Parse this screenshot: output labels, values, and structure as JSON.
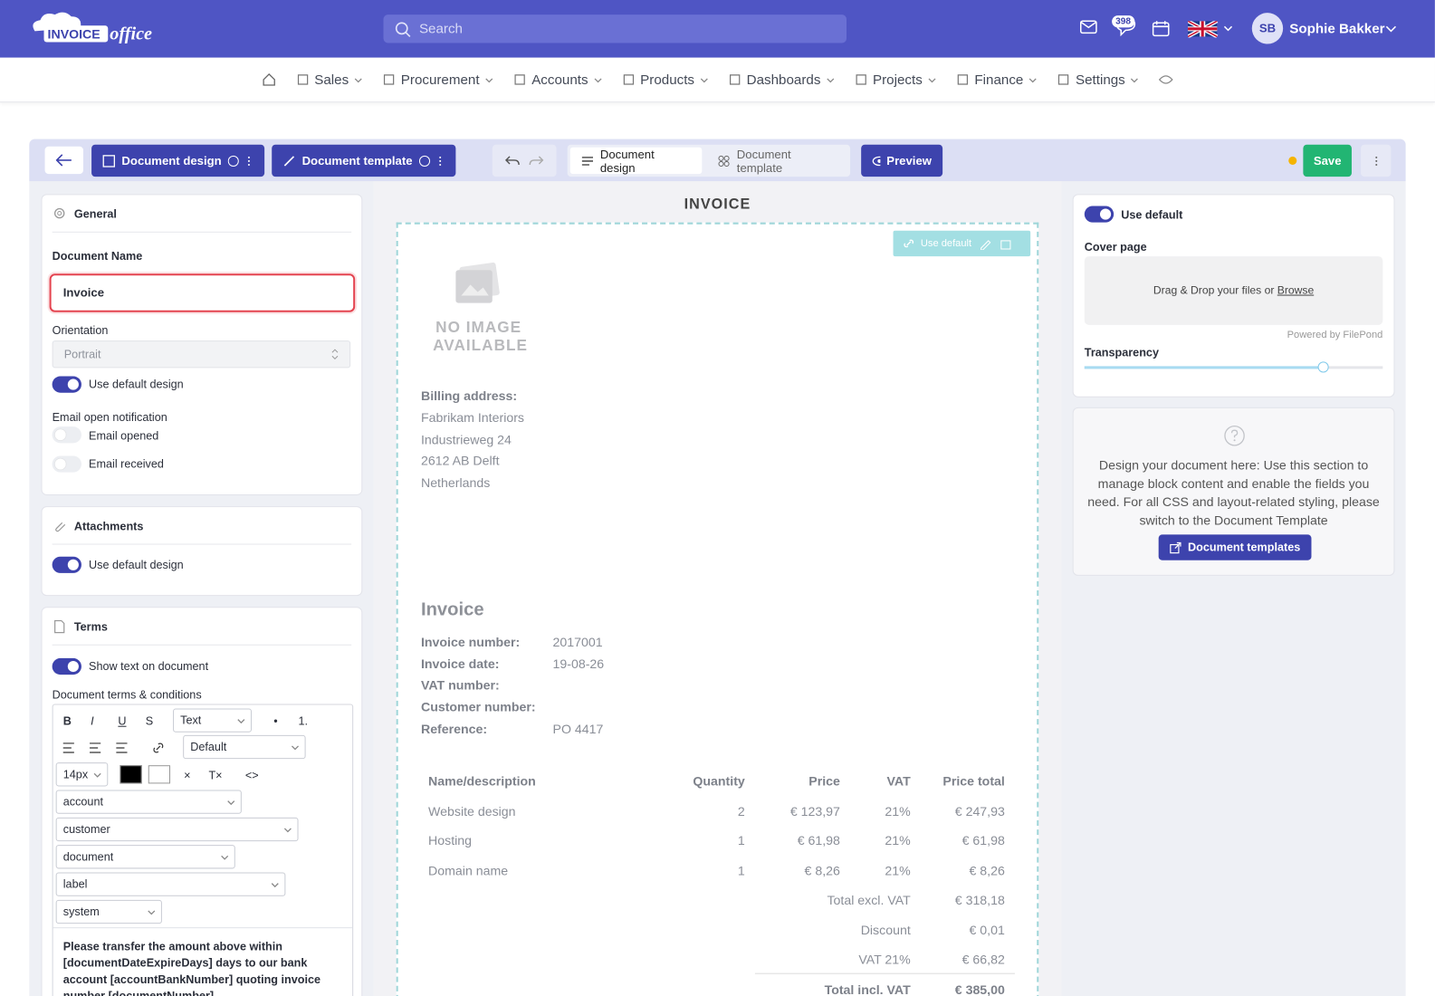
{
  "header": {
    "logo_main": "INVOICE",
    "logo_script": "office",
    "search_placeholder": "Search",
    "notification_count": 398,
    "user_initials": "SB",
    "user_name": "Sophie Bakker"
  },
  "nav": [
    "Sales",
    "Procurement",
    "Accounts",
    "Products",
    "Dashboards",
    "Projects",
    "Finance",
    "Settings"
  ],
  "toolbar": {
    "design_button": "Document design",
    "template_button": "Document template",
    "tab_design": "Document design",
    "tab_template": "Document template",
    "preview": "Preview",
    "save": "Save"
  },
  "left_panel": {
    "general": {
      "title": "General",
      "document_name_label": "Document Name",
      "document_name_value": "Invoice",
      "orientation_label": "Orientation",
      "orientation_value": "Portrait",
      "use_default_design": "Use default design",
      "email_notification_label": "Email open notification",
      "email_opened": "Email opened",
      "email_received": "Email received"
    },
    "attachments": {
      "title": "Attachments",
      "use_default_design": "Use default design"
    },
    "terms": {
      "title": "Terms",
      "show_text": "Show text on document",
      "conditions_label": "Document terms & conditions",
      "editor": {
        "format_buttons": [
          "B",
          "I",
          "U",
          "S"
        ],
        "block_select": "Text",
        "list_buttons": [
          "•",
          "1."
        ],
        "font_select": "Default",
        "size_select": "14px",
        "clear_buttons": [
          "×",
          "T×"
        ],
        "code_button": "<>",
        "placeholder_selects": [
          "account",
          "customer",
          "document",
          "label",
          "system"
        ]
      },
      "terms_text": "Please transfer the amount above within [documentDateExpireDays] days to our bank account [accountBankNumber] quoting invoice number [documentNumber]."
    }
  },
  "preview": {
    "title": "INVOICE",
    "use_default": "Use default",
    "no_image": [
      "NO IMAGE",
      "AVAILABLE"
    ],
    "billing_label": "Billing address:",
    "billing_lines": [
      "Fabrikam Interiors",
      "Industrieweg 24",
      "2612 AB Delft",
      "Netherlands"
    ],
    "invoice_heading": "Invoice",
    "fields": [
      {
        "label": "Invoice number:",
        "value": "2017001"
      },
      {
        "label": "Invoice date:",
        "value": "19-08-26"
      },
      {
        "label": "VAT number:"
      },
      {
        "label": "Customer number:"
      },
      {
        "label": "Reference:",
        "value": "PO 4417"
      }
    ],
    "table": {
      "headers": [
        "Name/description",
        "Quantity",
        "Price",
        "VAT",
        "Price total"
      ],
      "rows": [
        [
          "Website design",
          2,
          "€ 123,97",
          "21%",
          "€ 247,93"
        ],
        [
          "Hosting",
          1,
          "€ 61,98",
          "21%",
          "€ 61,98"
        ],
        [
          "Domain name",
          1,
          "€ 8,26",
          "21%",
          "€ 8,26"
        ]
      ]
    },
    "totals": [
      {
        "label": "Total excl. VAT",
        "value": "€ 318,18"
      },
      {
        "label": "Discount",
        "value": "€ 0,01"
      },
      {
        "label": "VAT 21%",
        "value": "€ 66,82"
      },
      {
        "label": "Total incl. VAT",
        "value": "€ 385,00"
      }
    ]
  },
  "right_panel": {
    "use_default": "Use default",
    "cover_page_label": "Cover page",
    "drop_text": "Drag & Drop your files or",
    "browse": "Browse",
    "powered_by": "Powered by FilePond",
    "transparency_label": "Transparency",
    "info_text": "Design your document here: Use this section to manage block content and enable the fields you need. For all CSS and layout-related styling, please switch to the Document Template",
    "templates_button": "Document templates"
  }
}
